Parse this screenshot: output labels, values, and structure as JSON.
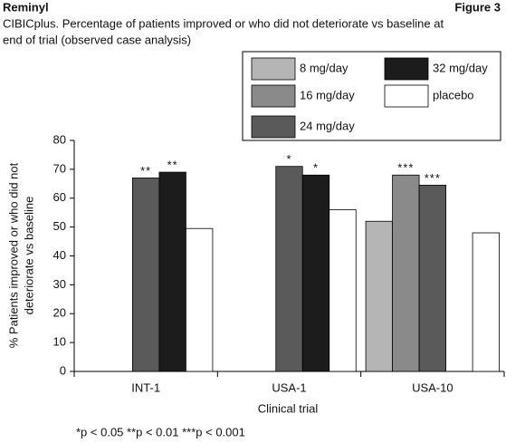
{
  "chart_data": {
    "type": "bar",
    "header": "Reminyl",
    "figure_label": "Figure 3",
    "title": [
      "CIBICplus. Percentage of patients improved or who did not deteriorate vs baseline at",
      "end of trial (observed case analysis)"
    ],
    "categories": [
      "INT-1",
      "USA-1",
      "USA-10"
    ],
    "series": [
      {
        "name": "8 mg/day",
        "color": "#b5b5b5",
        "values": [
          null,
          null,
          52
        ],
        "markers": [
          null,
          null,
          null
        ]
      },
      {
        "name": "16 mg/day",
        "color": "#8a8a8a",
        "values": [
          null,
          null,
          68
        ],
        "markers": [
          null,
          null,
          "***"
        ]
      },
      {
        "name": "24 mg/day",
        "color": "#5a5a5a",
        "values": [
          67,
          71,
          64.5
        ],
        "markers": [
          "**",
          "*",
          "***"
        ]
      },
      {
        "name": "32 mg/day",
        "color": "#1c1c1c",
        "values": [
          69,
          68,
          null
        ],
        "markers": [
          "**",
          "*",
          null
        ]
      },
      {
        "name": "placebo",
        "color": "#ffffff",
        "values": [
          49.5,
          56,
          48
        ],
        "markers": [
          null,
          null,
          null
        ]
      }
    ],
    "ylabel": [
      "% Patients improved or who did not",
      "deteriorate vs baseline"
    ],
    "xlabel": "Clinical trial",
    "ylim": [
      0,
      80
    ],
    "yticks": [
      0,
      10,
      20,
      30,
      40,
      50,
      60,
      70,
      80
    ],
    "footnote": "*p < 0.05  **p < 0.01  ***p < 0.001",
    "legend": "top-right"
  }
}
